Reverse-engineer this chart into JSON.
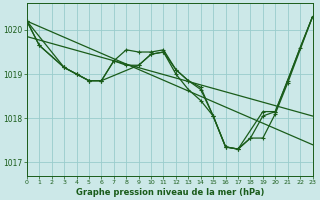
{
  "title": "Graphe pression niveau de la mer (hPa)",
  "bg_color": "#cce8e8",
  "grid_color": "#99cccc",
  "line_color": "#1a5c1a",
  "xlim": [
    0,
    23
  ],
  "ylim": [
    1016.7,
    1020.6
  ],
  "yticks": [
    1017,
    1018,
    1019,
    1020
  ],
  "xticks": [
    0,
    1,
    2,
    3,
    4,
    5,
    6,
    7,
    8,
    9,
    10,
    11,
    12,
    13,
    14,
    15,
    16,
    17,
    18,
    19,
    20,
    21,
    22,
    23
  ],
  "series": [
    {
      "x": [
        0,
        23
      ],
      "y": [
        1020.2,
        1017.4
      ],
      "marker": false
    },
    {
      "x": [
        0,
        23
      ],
      "y": [
        1019.85,
        1018.05
      ],
      "marker": false
    },
    {
      "x": [
        0,
        1,
        3,
        4,
        5,
        6,
        7,
        8,
        9,
        10,
        11,
        12,
        13,
        14,
        15,
        16,
        17,
        19,
        20,
        21,
        22,
        23
      ],
      "y": [
        1020.2,
        1019.65,
        1019.15,
        1019.0,
        1018.85,
        1018.85,
        1019.3,
        1019.55,
        1019.5,
        1019.5,
        1019.55,
        1019.1,
        1018.85,
        1018.7,
        1018.05,
        1017.35,
        1017.3,
        1018.15,
        1018.15,
        1018.85,
        1019.6,
        1020.3
      ],
      "marker": true
    },
    {
      "x": [
        0,
        3,
        4,
        5,
        6,
        7,
        8,
        9,
        10,
        11,
        12,
        13,
        14,
        15,
        16,
        17,
        18,
        19,
        20,
        23
      ],
      "y": [
        1020.2,
        1019.15,
        1019.0,
        1018.85,
        1018.85,
        1019.3,
        1019.2,
        1019.2,
        1019.45,
        1019.5,
        1019.1,
        1018.85,
        1018.65,
        1018.05,
        1017.35,
        1017.3,
        1017.55,
        1018.05,
        1018.15,
        1020.3
      ],
      "marker": true
    },
    {
      "x": [
        0,
        1,
        3,
        4,
        5,
        6,
        9,
        10,
        11,
        12,
        13,
        14,
        15,
        16,
        17,
        18,
        19,
        20,
        21,
        23
      ],
      "y": [
        1020.2,
        1019.65,
        1019.15,
        1019.0,
        1018.85,
        1018.85,
        1019.2,
        1019.45,
        1019.5,
        1019.0,
        1018.65,
        1018.4,
        1018.05,
        1017.35,
        1017.3,
        1017.55,
        1017.55,
        1018.1,
        1018.8,
        1020.3
      ],
      "marker": true
    }
  ]
}
